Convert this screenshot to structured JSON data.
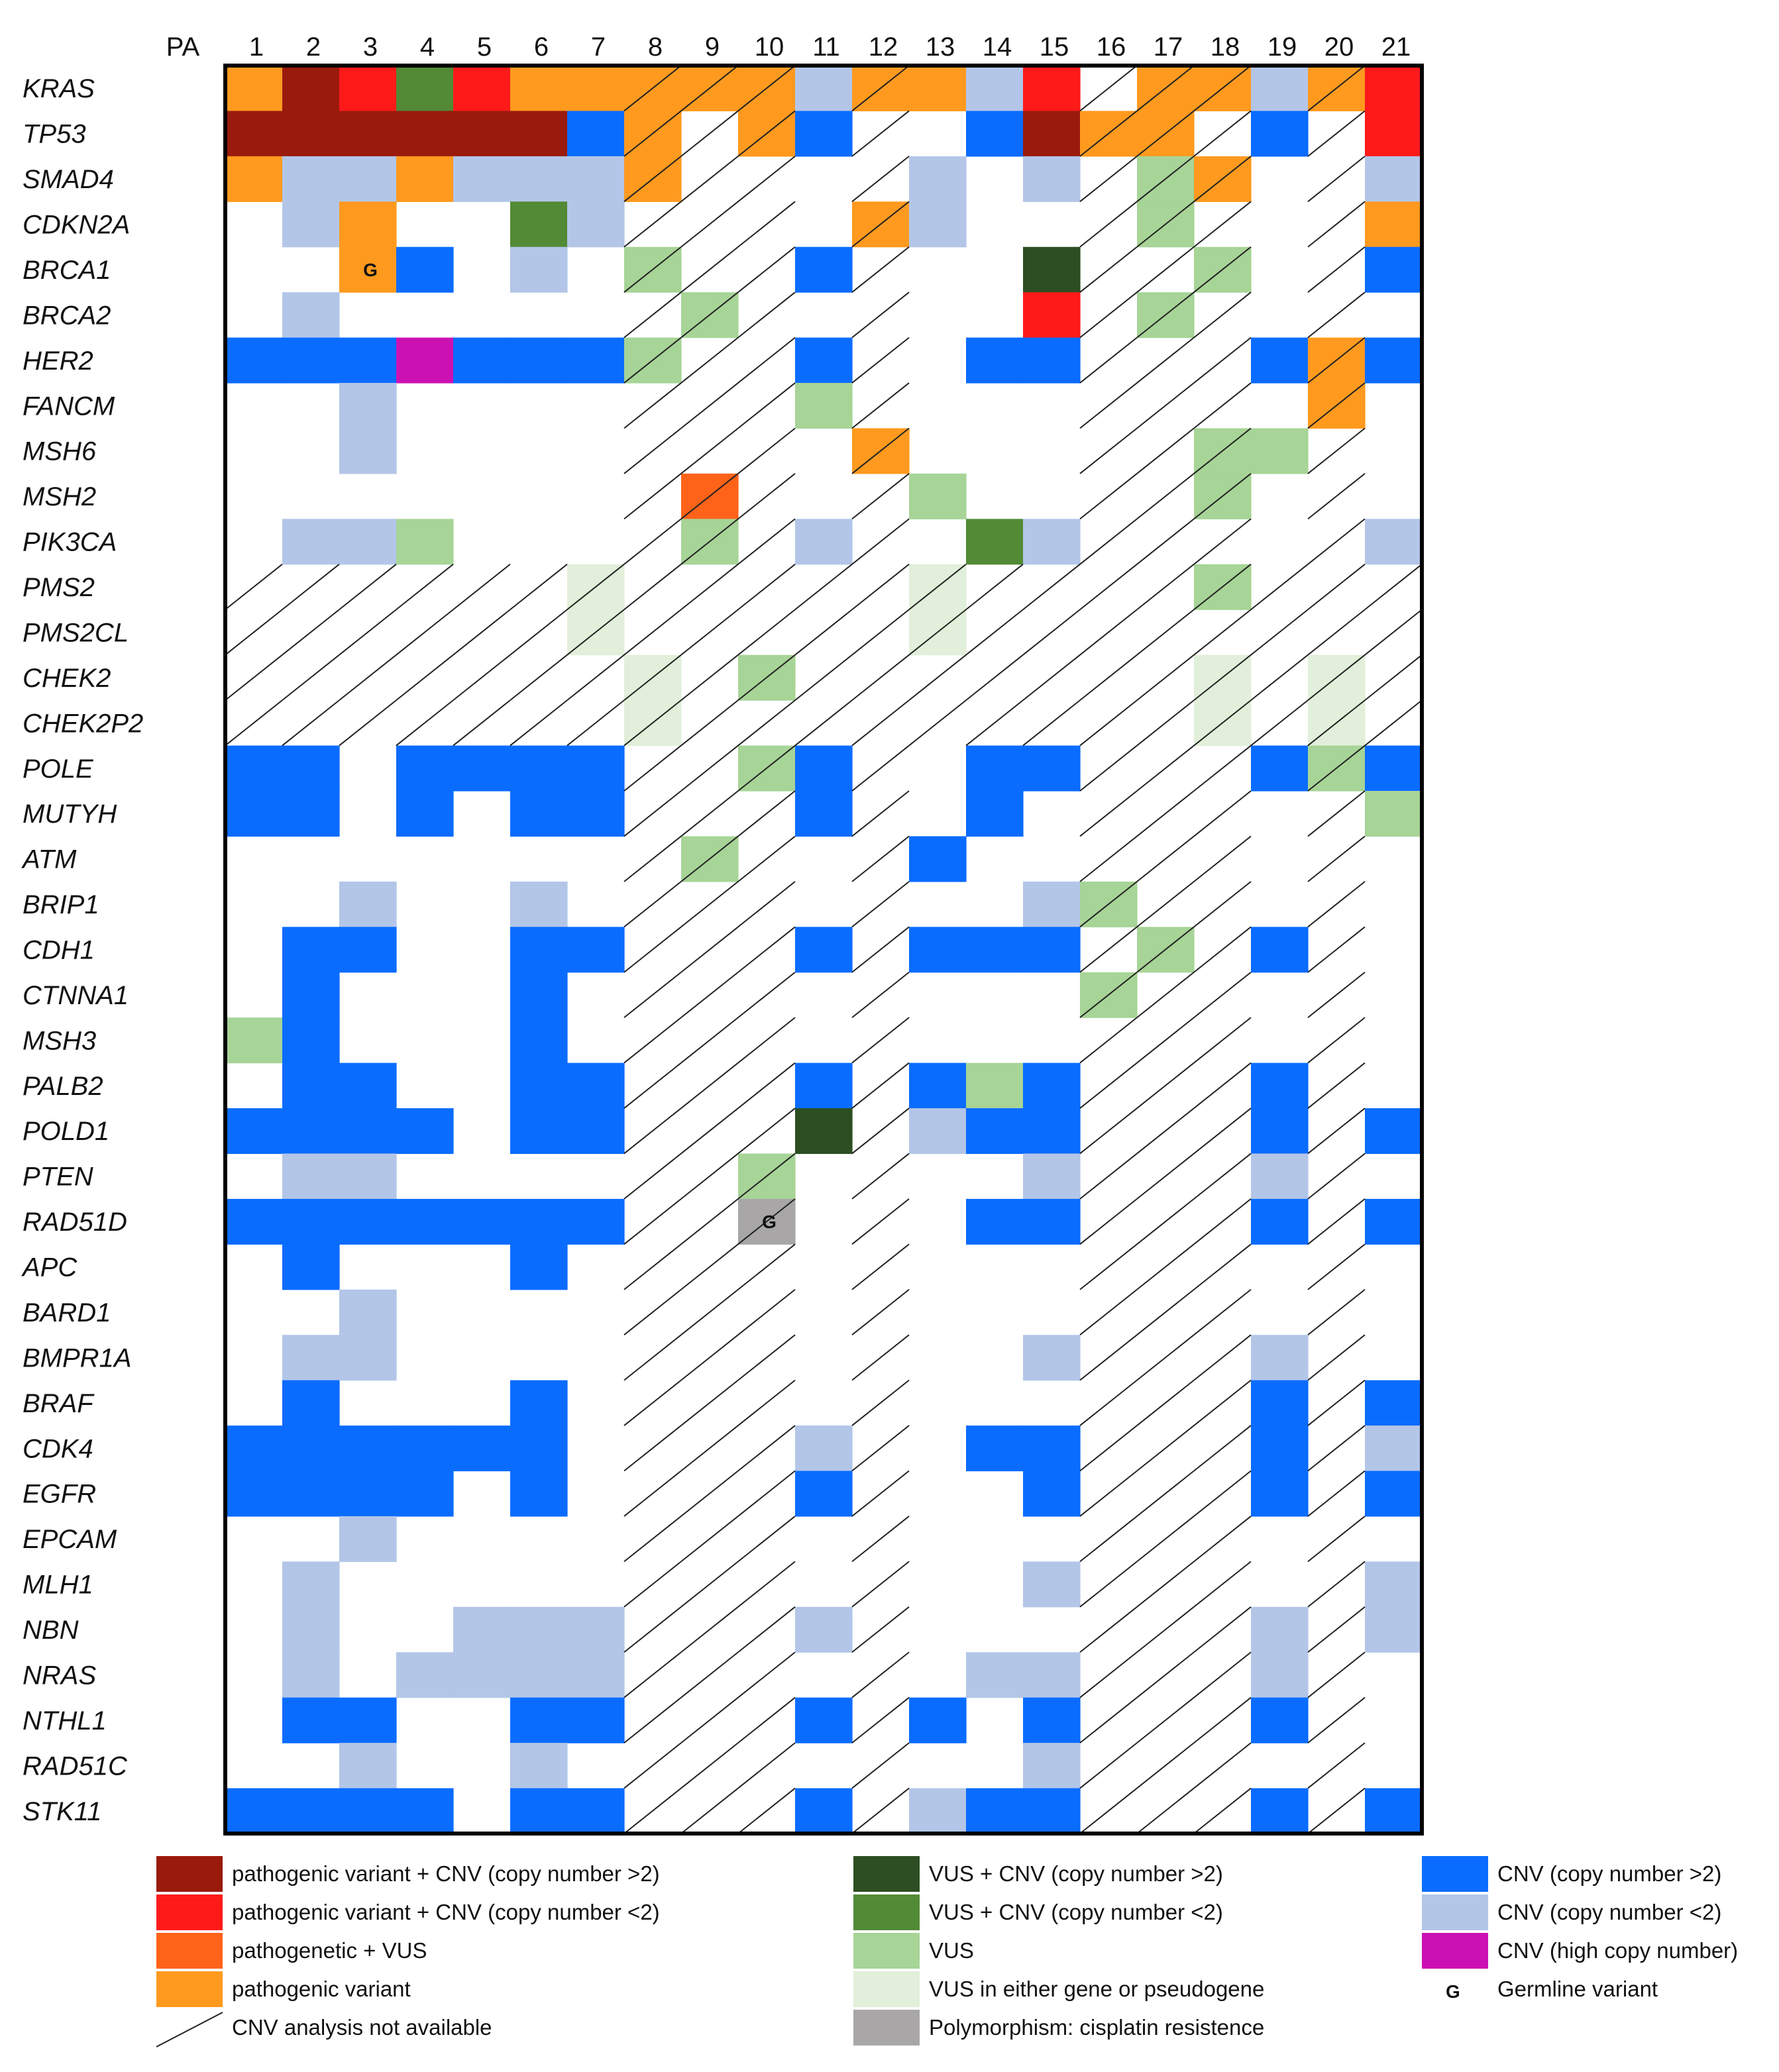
{
  "chart_data": {
    "type": "heatmap",
    "title": "",
    "corner_label": "PA",
    "columns": [
      "1",
      "2",
      "3",
      "4",
      "5",
      "6",
      "7",
      "8",
      "9",
      "10",
      "11",
      "12",
      "13",
      "14",
      "15",
      "16",
      "17",
      "18",
      "19",
      "20",
      "21"
    ],
    "rows": [
      "KRAS",
      "TP53",
      "SMAD4",
      "CDKN2A",
      "BRCA1",
      "BRCA2",
      "HER2",
      "FANCM",
      "MSH6",
      "MSH2",
      "PIK3CA",
      "PMS2",
      "PMS2CL",
      "CHEK2",
      "CHEK2P2",
      "POLE",
      "MUTYH",
      "ATM",
      "BRIP1",
      "CDH1",
      "CTNNA1",
      "MSH3",
      "PALB2",
      "POLD1",
      "PTEN",
      "RAD51D",
      "APC",
      "BARD1",
      "BMPR1A",
      "BRAF",
      "CDK4",
      "EGFR",
      "EPCAM",
      "MLH1",
      "NBN",
      "NRAS",
      "NTHL1",
      "RAD51C",
      "STK11"
    ],
    "categories": {
      "D": {
        "label": "pathogenic variant + CNV (copy number >2)",
        "color": "#9a1a0c"
      },
      "R": {
        "label": "pathogenic variant + CNV (copy number <2)",
        "color": "#ff1a1a"
      },
      "O": {
        "label": "pathogenetic + VUS",
        "color": "#ff6319"
      },
      "Y": {
        "label": "pathogenic variant",
        "color": "#ff9a1f"
      },
      "V": {
        "label": "VUS + CNV (copy number >2)",
        "color": "#2c4e22"
      },
      "W": {
        "label": "VUS + CNV (copy number <2)",
        "color": "#528a36"
      },
      "G": {
        "label": "VUS",
        "color": "#a7d497"
      },
      "P": {
        "label": "VUS in either gene or pseudogene",
        "color": "#e2efda"
      },
      "S": {
        "label": "Polymorphism: cisplatin resistence",
        "color": "#a8a6a6"
      },
      "B": {
        "label": "CNV (copy number >2)",
        "color": "#0a6cff"
      },
      "L": {
        "label": "CNV (copy number <2)",
        "color": "#b3c6e8"
      },
      "M": {
        "label": "CNV (high copy number)",
        "color": "#cc11b3"
      },
      "N": {
        "label": "",
        "color": "#ffffff"
      }
    },
    "hatch_label": "CNV analysis not available",
    "germline_symbol": "G",
    "germline_label": "Germline variant",
    "cnv_not_available": {
      "full_columns": [
        "8",
        "9",
        "10",
        "12",
        "16",
        "17",
        "18",
        "20"
      ],
      "full_rows": [
        "PMS2",
        "PMS2CL",
        "CHEK2",
        "CHEK2P2"
      ]
    },
    "germline_cells": [
      {
        "row": "BRCA1",
        "col": "3"
      },
      {
        "row": "RAD51D",
        "col": "10"
      }
    ],
    "matrix": [
      "YDRWRYYYYYLYYLRNYYLYR",
      "DDDDDDBYNYBNNBDYYNBNR",
      "YLLYLLLYNNNNLNLNGYNNL",
      "NLYNNWLNNNNYLNNNGNNNY",
      "NNYBNLNGNNBNNNVNNGNNB",
      "NLNNNNNNGNNNNNRNGNNNN",
      "BBBMBBBGNNBNNBBNNNBYB",
      "NNLNNNNNNNGNNNNNNNNYN",
      "NNLNNNNNNNNYNNNNNGGNN",
      "NNNNNNNNONNNGNNNNGNNN",
      "NLLGNNNNGNLNNWLNNNNNL",
      "NNNNNNPNNNNNPNNNNGNNN",
      "NNNNNNPNNNNNPNNNNNNNN",
      "NNNNNNNPNGNNNNNNNPNPN",
      "NNNNNNNPNNNNNNNNNPNPN",
      "BBNBBBBNNGBNNBBNNNBGB",
      "BBNBNBBNNNBNNBNNNNNNG",
      "NNNNNNNNGNNNBNNNNNNNN",
      "NNLNNLNNNNNNNNLGNNNNN",
      "NBBNNBBNNNBNBBBNGNBNN",
      "NBNNNBNNNNNNNNNGNNNNN",
      "GBNNNBNNNNNNNNNNNNNNN",
      "NBBNNBBNNNBNBGBNNNBNN",
      "BBBBNBBNNNVNLBBNNNBNB",
      "NLLNNNNNNGNNNNLNNNLNN",
      "BBBBBBBNNSNNNBBNNNBNB",
      "NBNNNBNNNNNNNNNNNNNNN",
      "NNLNNNNNNNNNNNNNNNNNN",
      "NLLNNNNNNNNNNNLNNNLNN",
      "NBNNNBNNNNNNNNNNNNBNB",
      "BBBBBBNNNNLNNBBNNNBNL",
      "BBBBNBNNNNBNNNBNNNBNB",
      "NNLNNNNNNNNNNNNNNNNNN",
      "NLNNNNNNNNNNNNLNNNNNL",
      "NLNNLLLNNNLNNNNNNNLNL",
      "NLNLLLLNNNNNNLLNNNLNN",
      "NBBNNBBNNNBNBNBNNNBNN",
      "NNLNNLNNNNNNNNLNNNNNN",
      "BBBBNBBNNNBNLBBNNNBNB"
    ],
    "legend_layout": [
      [
        "D",
        "R",
        "O",
        "Y",
        "hatch"
      ],
      [
        "V",
        "W",
        "G",
        "P",
        "S"
      ],
      [
        "B",
        "L",
        "M",
        "germline"
      ]
    ]
  }
}
